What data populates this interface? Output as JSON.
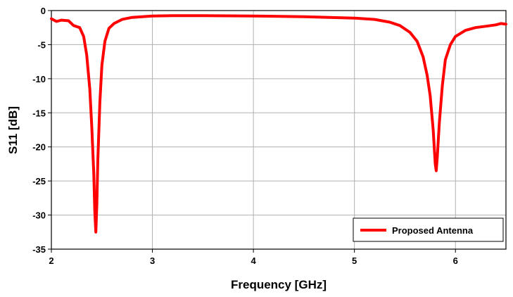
{
  "chart_data": {
    "type": "line",
    "title": "",
    "xlabel": "Frequency [GHz]",
    "ylabel": "S11 [dB]",
    "xlim": [
      2,
      6.5
    ],
    "ylim": [
      -35,
      0
    ],
    "xticks": [
      2,
      3,
      4,
      5,
      6
    ],
    "yticks": [
      0,
      -5,
      -10,
      -15,
      -20,
      -25,
      -30,
      -35
    ],
    "xtick_labels": [
      "2",
      "3",
      "4",
      "5",
      "6"
    ],
    "ytick_labels": [
      "0",
      "-5",
      "-10",
      "-15",
      "-20",
      "-25",
      "-30",
      "-35"
    ],
    "grid": true,
    "legend": {
      "placement": "bottom-right"
    },
    "series": [
      {
        "name": "Proposed Antenna",
        "color": "#ff0000",
        "x": [
          2.0,
          2.05,
          2.1,
          2.17,
          2.22,
          2.28,
          2.32,
          2.35,
          2.38,
          2.4,
          2.42,
          2.43,
          2.44,
          2.45,
          2.46,
          2.48,
          2.5,
          2.53,
          2.57,
          2.62,
          2.7,
          2.8,
          2.9,
          3.0,
          3.2,
          3.5,
          4.0,
          4.5,
          5.0,
          5.2,
          5.35,
          5.45,
          5.55,
          5.62,
          5.68,
          5.72,
          5.75,
          5.78,
          5.8,
          5.81,
          5.82,
          5.84,
          5.87,
          5.9,
          5.95,
          6.0,
          6.1,
          6.2,
          6.3,
          6.4,
          6.45,
          6.5
        ],
        "y": [
          -1.2,
          -1.6,
          -1.4,
          -1.5,
          -2.2,
          -2.5,
          -3.8,
          -6.5,
          -11.5,
          -17.0,
          -24.0,
          -29.5,
          -32.5,
          -28.5,
          -22.0,
          -13.5,
          -8.0,
          -4.5,
          -2.6,
          -1.9,
          -1.3,
          -1.0,
          -0.9,
          -0.8,
          -0.75,
          -0.75,
          -0.8,
          -0.9,
          -1.1,
          -1.3,
          -1.7,
          -2.2,
          -3.2,
          -4.5,
          -6.8,
          -9.5,
          -12.5,
          -17.5,
          -22.5,
          -23.5,
          -21.5,
          -16.5,
          -11.0,
          -7.2,
          -5.0,
          -3.8,
          -2.9,
          -2.5,
          -2.3,
          -2.1,
          -1.9,
          -2.0
        ]
      }
    ]
  }
}
